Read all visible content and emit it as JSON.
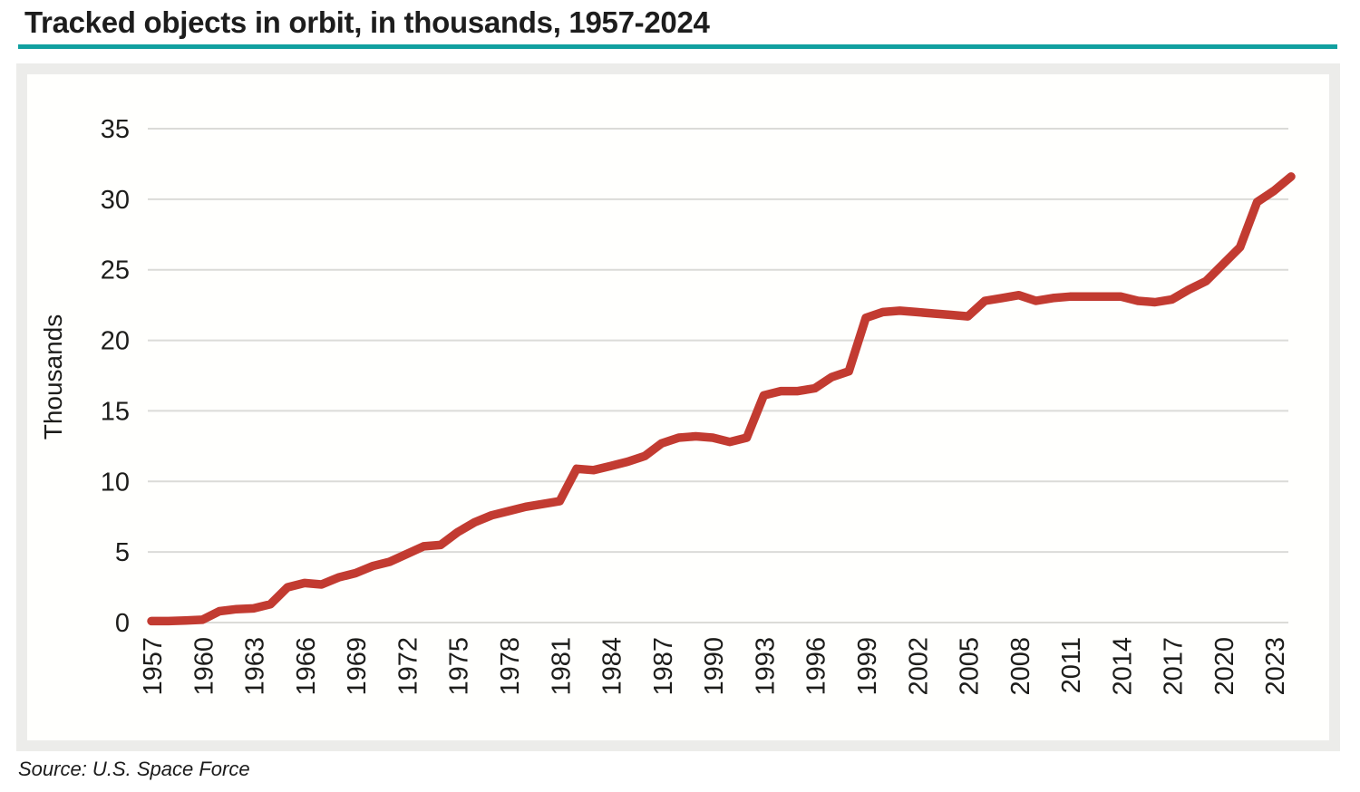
{
  "header": {
    "title": "Tracked objects in orbit, in thousands, 1957-2024"
  },
  "footer": {
    "source": "Source: U.S. Space Force"
  },
  "theme": {
    "accent_color": "#11a0a0",
    "line_color": "#c23b31",
    "grid_color": "#dbdbd8",
    "text_color": "#1d1d1b"
  },
  "chart_data": {
    "type": "line",
    "title": "Tracked objects in orbit, in thousands, 1957-2024",
    "xlabel": "",
    "ylabel": "Thousands",
    "legend": "none",
    "grid": "horizontal",
    "xlim": [
      1957,
      2024
    ],
    "ylim": [
      0,
      35
    ],
    "yticks": [
      0,
      5,
      10,
      15,
      20,
      25,
      30,
      35
    ],
    "xticks": [
      1957,
      1960,
      1963,
      1966,
      1969,
      1972,
      1975,
      1978,
      1981,
      1984,
      1987,
      1990,
      1993,
      1996,
      1999,
      2002,
      2005,
      2008,
      2011,
      2014,
      2017,
      2020,
      2023
    ],
    "series_name": "Tracked objects in orbit (thousands)",
    "x": [
      1957,
      1958,
      1959,
      1960,
      1961,
      1962,
      1963,
      1964,
      1965,
      1966,
      1967,
      1968,
      1969,
      1970,
      1971,
      1972,
      1973,
      1974,
      1975,
      1976,
      1977,
      1978,
      1979,
      1980,
      1981,
      1982,
      1983,
      1984,
      1985,
      1986,
      1987,
      1988,
      1989,
      1990,
      1991,
      1992,
      1993,
      1994,
      1995,
      1996,
      1997,
      1998,
      1999,
      2000,
      2001,
      2002,
      2003,
      2004,
      2005,
      2006,
      2007,
      2008,
      2009,
      2010,
      2011,
      2012,
      2013,
      2014,
      2015,
      2016,
      2017,
      2018,
      2019,
      2020,
      2021,
      2022,
      2023,
      2024
    ],
    "values": [
      0.1,
      0.1,
      0.15,
      0.2,
      0.8,
      0.95,
      1.0,
      1.3,
      2.5,
      2.8,
      2.7,
      3.2,
      3.5,
      4.0,
      4.3,
      4.85,
      5.4,
      5.5,
      6.4,
      7.1,
      7.6,
      7.9,
      8.2,
      8.4,
      8.6,
      10.9,
      10.8,
      11.1,
      11.4,
      11.8,
      12.7,
      13.1,
      13.2,
      13.1,
      12.8,
      13.1,
      16.1,
      16.4,
      16.4,
      16.6,
      17.4,
      17.8,
      21.6,
      22.0,
      22.1,
      22.0,
      21.9,
      21.8,
      21.7,
      22.8,
      23.0,
      23.2,
      22.8,
      23.0,
      23.1,
      23.1,
      23.1,
      23.1,
      22.8,
      22.7,
      22.9,
      23.6,
      24.2,
      25.4,
      26.6,
      29.8,
      30.6,
      31.6
    ]
  }
}
